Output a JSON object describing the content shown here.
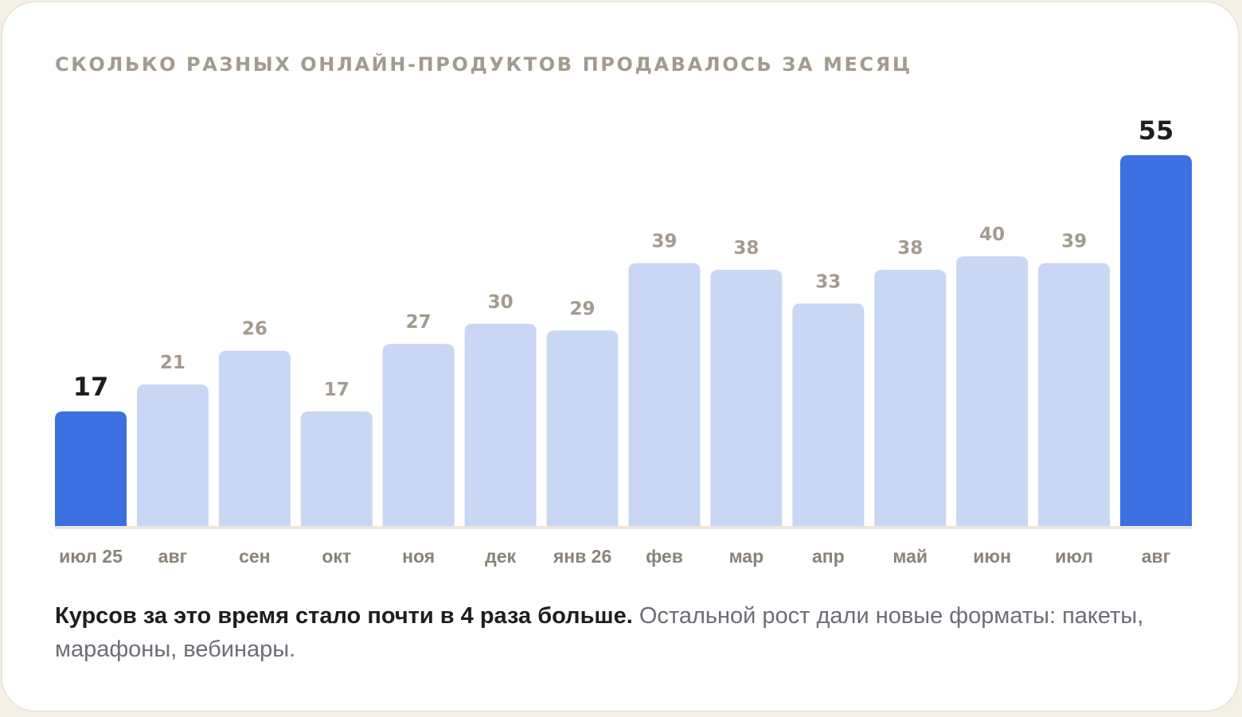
{
  "title": "СКОЛЬКО РАЗНЫХ ОНЛАЙН-ПРОДУКТОВ ПРОДАВАЛОСЬ ЗА МЕСЯЦ",
  "caption": {
    "bold": "Курсов за это время стало почти в 4 раза больше.",
    "rest": " Остальной рост дали новые форматы: пакеты, марафоны, вебинары."
  },
  "colors": {
    "bar": "#c9d7f5",
    "highlight": "#3d70e0",
    "baseline": "#ece7da"
  },
  "chart_data": {
    "type": "bar",
    "title": "СКОЛЬКО РАЗНЫХ ОНЛАЙН-ПРОДУКТОВ ПРОДАВАЛОСЬ ЗА МЕСЯЦ",
    "xlabel": "",
    "ylabel": "",
    "categories": [
      "июл 25",
      "авг",
      "сен",
      "окт",
      "ноя",
      "дек",
      "янв 26",
      "фев",
      "мар",
      "апр",
      "май",
      "июн",
      "июл",
      "авг"
    ],
    "values": [
      17,
      21,
      26,
      17,
      27,
      30,
      29,
      39,
      38,
      33,
      38,
      40,
      39,
      55
    ],
    "highlighted_indices": [
      0,
      13
    ],
    "ylim": [
      0,
      55
    ],
    "grid": false,
    "legend": "none"
  }
}
